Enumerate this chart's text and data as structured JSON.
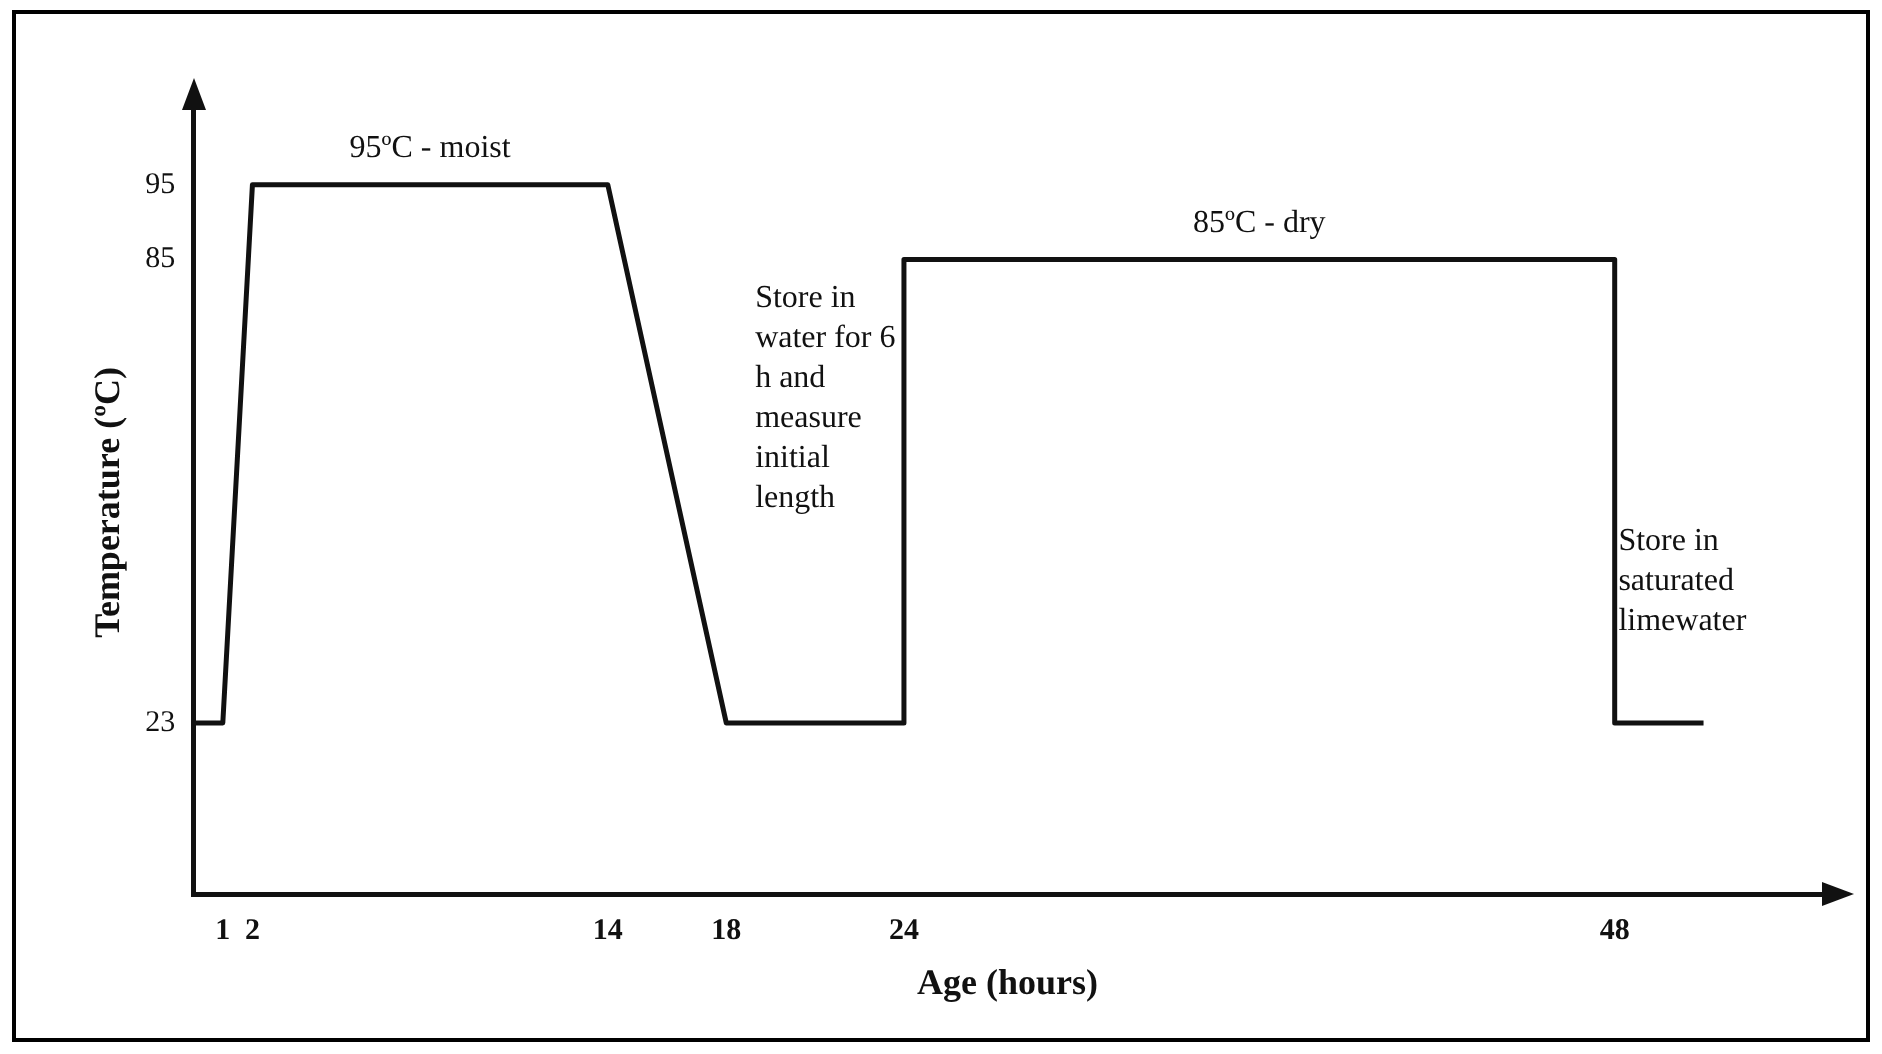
{
  "chart_data": {
    "type": "line",
    "xlabel": "Age (hours)",
    "ylabel": "Temperature (ºC)",
    "series": [
      {
        "color": "#111111",
        "x": [
          0,
          1,
          2,
          14,
          18,
          24,
          24,
          48,
          48,
          51
        ],
        "values": [
          23,
          23,
          95,
          95,
          23,
          23,
          85,
          85,
          23,
          23
        ]
      }
    ],
    "xlim": [
      0,
      55
    ],
    "xticks": [
      1,
      2,
      14,
      18,
      24,
      48
    ],
    "ylim": [
      0,
      105
    ],
    "yticks": [
      23,
      85,
      95
    ],
    "grid": false,
    "legend": false,
    "marker": "none",
    "line_style": "solid",
    "annotations": [
      {
        "text": "95ºC - moist",
        "x": 8,
        "y": 95
      },
      {
        "text": "85ºC - dry",
        "x": 36,
        "y": 85
      },
      "Store in water for 6 h and measure initial length",
      "Store in saturated limewater"
    ]
  }
}
